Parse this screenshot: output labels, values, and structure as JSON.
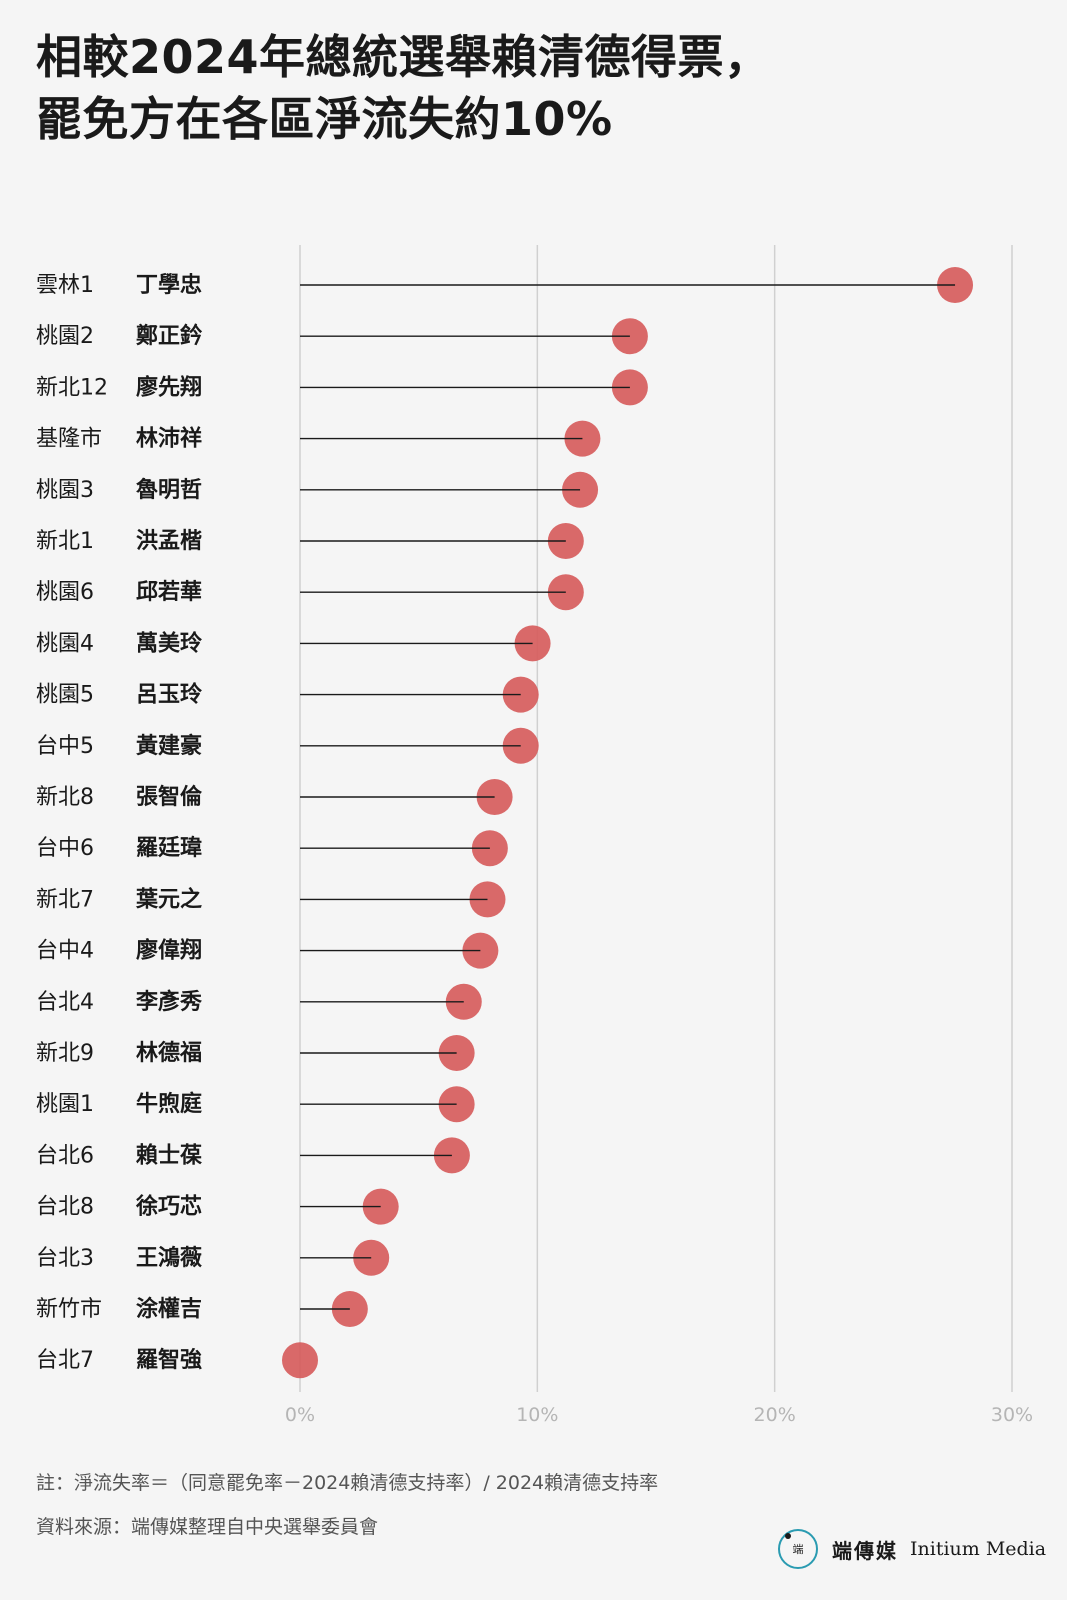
{
  "title": {
    "line1": "相較2024年總統選舉賴清德得票，",
    "line2": "罷免方在各區淨流失約10%"
  },
  "chart_data": {
    "type": "lollipop",
    "x_unit": "%",
    "xlim": [
      0,
      30
    ],
    "x_ticks": [
      "0%",
      "10%",
      "20%",
      "30%"
    ],
    "grid": "vertical",
    "marker_color": "#d65a5a",
    "rows": [
      {
        "district": "雲林1",
        "name": "丁學忠",
        "value": 27.6
      },
      {
        "district": "桃園2",
        "name": "鄭正鈐",
        "value": 13.9
      },
      {
        "district": "新北12",
        "name": "廖先翔",
        "value": 13.9
      },
      {
        "district": "基隆市",
        "name": "林沛祥",
        "value": 11.9
      },
      {
        "district": "桃園3",
        "name": "魯明哲",
        "value": 11.8
      },
      {
        "district": "新北1",
        "name": "洪孟楷",
        "value": 11.2
      },
      {
        "district": "桃園6",
        "name": "邱若華",
        "value": 11.2
      },
      {
        "district": "桃園4",
        "name": "萬美玲",
        "value": 9.8
      },
      {
        "district": "桃園5",
        "name": "呂玉玲",
        "value": 9.3
      },
      {
        "district": "台中5",
        "name": "黃建豪",
        "value": 9.3
      },
      {
        "district": "新北8",
        "name": "張智倫",
        "value": 8.2
      },
      {
        "district": "台中6",
        "name": "羅廷瑋",
        "value": 8.0
      },
      {
        "district": "新北7",
        "name": "葉元之",
        "value": 7.9
      },
      {
        "district": "台中4",
        "name": "廖偉翔",
        "value": 7.6
      },
      {
        "district": "台北4",
        "name": "李彥秀",
        "value": 6.9
      },
      {
        "district": "新北9",
        "name": "林德福",
        "value": 6.6
      },
      {
        "district": "桃園1",
        "name": "牛煦庭",
        "value": 6.6
      },
      {
        "district": "台北6",
        "name": "賴士葆",
        "value": 6.4
      },
      {
        "district": "台北8",
        "name": "徐巧芯",
        "value": 3.4
      },
      {
        "district": "台北3",
        "name": "王鴻薇",
        "value": 3.0
      },
      {
        "district": "新竹市",
        "name": "涂權吉",
        "value": 2.1
      },
      {
        "district": "台北7",
        "name": "羅智強",
        "value": 0.0
      }
    ]
  },
  "footer": {
    "note": "註：淨流失率＝（同意罷免率－2024賴清德支持率）/ 2024賴清德支持率",
    "source": "資料來源：端傳媒整理自中央選舉委員會",
    "logo_cn": "端傳媒",
    "logo_en": "Initium Media",
    "logo_mark": "端"
  }
}
